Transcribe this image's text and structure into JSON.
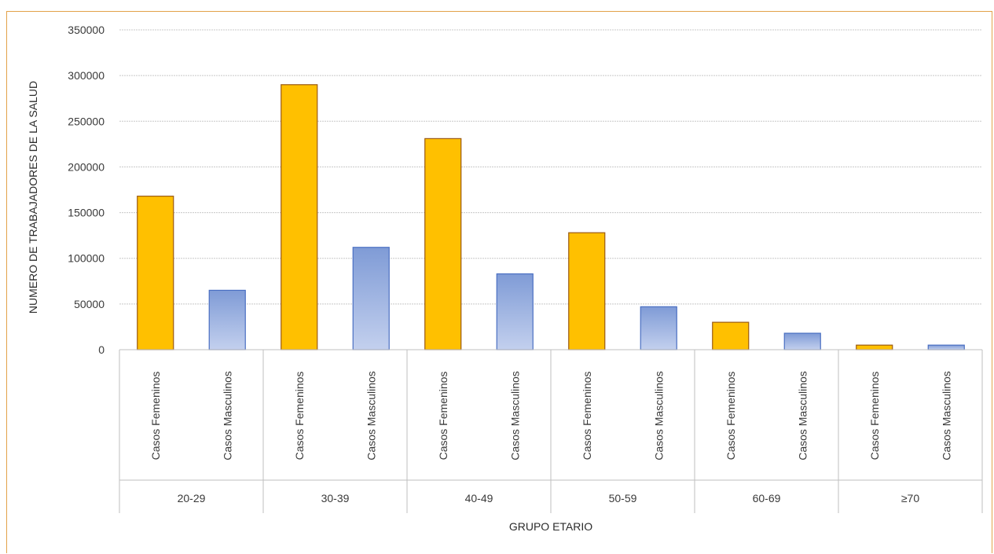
{
  "chart_data": {
    "type": "bar",
    "xlabel": "GRUPO ETARIO",
    "ylabel": "NUMERO DE TRABAJADORES DE LA SALUD",
    "ylim": [
      0,
      350000
    ],
    "yticks": [
      0,
      50000,
      100000,
      150000,
      200000,
      250000,
      300000,
      350000
    ],
    "ytick_labels": [
      "0",
      "50000",
      "100000",
      "150000",
      "200000",
      "250000",
      "300000",
      "350000"
    ],
    "grid": true,
    "groups": [
      "20-29",
      "30-39",
      "40-49",
      "50-59",
      "60-69",
      "≥70"
    ],
    "subcategories": [
      "Casos Femeninos",
      "Casos Masculinos"
    ],
    "series": [
      {
        "name": "Casos Femeninos",
        "color": "#FFC000",
        "values": [
          168000,
          290000,
          231000,
          128000,
          30000,
          5000
        ]
      },
      {
        "name": "Casos Masculinos",
        "color": "#8FA8DC",
        "values": [
          65000,
          112000,
          83000,
          47000,
          18000,
          5000
        ]
      }
    ]
  }
}
